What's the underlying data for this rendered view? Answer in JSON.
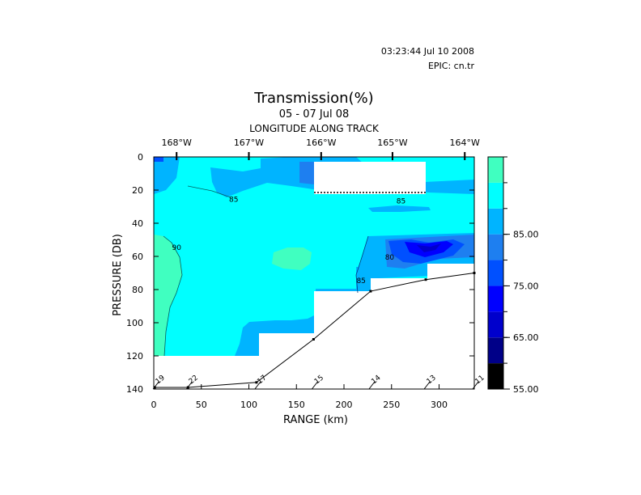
{
  "header": {
    "timestamp": "03:23:44 Jul 10 2008",
    "epic": "EPIC:  cn.tr"
  },
  "chart_data": {
    "type": "heatmap",
    "title": "Transmission(%)",
    "subtitle": "05 - 07 Jul 08",
    "top_axis_label": "LONGITUDE ALONG TRACK",
    "top_ticks": [
      {
        "label": "168°W",
        "x": 24
      },
      {
        "label": "167°W",
        "x": 100
      },
      {
        "label": "166°W",
        "x": 176
      },
      {
        "label": "165°W",
        "x": 251
      },
      {
        "label": "164°W",
        "x": 327
      }
    ],
    "xlabel": "RANGE (km)",
    "ylabel": "PRESSURE (DB)",
    "xlim": [
      0,
      337
    ],
    "ylim": [
      0,
      140
    ],
    "y_inverted": true,
    "x_ticks": [
      0,
      50,
      100,
      150,
      200,
      250,
      300
    ],
    "y_ticks": [
      0,
      20,
      40,
      60,
      80,
      100,
      120,
      140
    ],
    "colorbar": {
      "labels": [
        "85.00",
        "75.00",
        "65.00",
        "55.00"
      ],
      "levels": [
        {
          "from": 55,
          "to": 60,
          "color": "#000000"
        },
        {
          "from": 60,
          "to": 65,
          "color": "#000088"
        },
        {
          "from": 65,
          "to": 70,
          "color": "#0000cc"
        },
        {
          "from": 70,
          "to": 75,
          "color": "#0000ff"
        },
        {
          "from": 75,
          "to": 80,
          "color": "#0050ff"
        },
        {
          "from": 80,
          "to": 85,
          "color": "#1e7ff0"
        },
        {
          "from": 85,
          "to": 90,
          "color": "#00b4ff"
        },
        {
          "from": 90,
          "to": 95,
          "color": "#00ffff"
        },
        {
          "from": 95,
          "to": 100,
          "color": "#40ffc0"
        }
      ]
    },
    "contour_labels": [
      {
        "text": "85",
        "x": 84,
        "y": 27
      },
      {
        "text": "85",
        "x": 260,
        "y": 28
      },
      {
        "text": "90",
        "x": 24,
        "y": 56
      },
      {
        "text": "80",
        "x": 248,
        "y": 62
      },
      {
        "text": "85",
        "x": 218,
        "y": 76
      }
    ],
    "stations": [
      {
        "label": "19",
        "x": 1,
        "depth": 139
      },
      {
        "label": "22",
        "x": 36,
        "depth": 139
      },
      {
        "label": "17",
        "x": 108,
        "depth": 136
      },
      {
        "label": "15",
        "x": 168,
        "depth": 110
      },
      {
        "label": "14",
        "x": 228,
        "depth": 81
      },
      {
        "label": "13",
        "x": 286,
        "depth": 74
      },
      {
        "label": "11",
        "x": 337,
        "depth": 70
      }
    ]
  }
}
